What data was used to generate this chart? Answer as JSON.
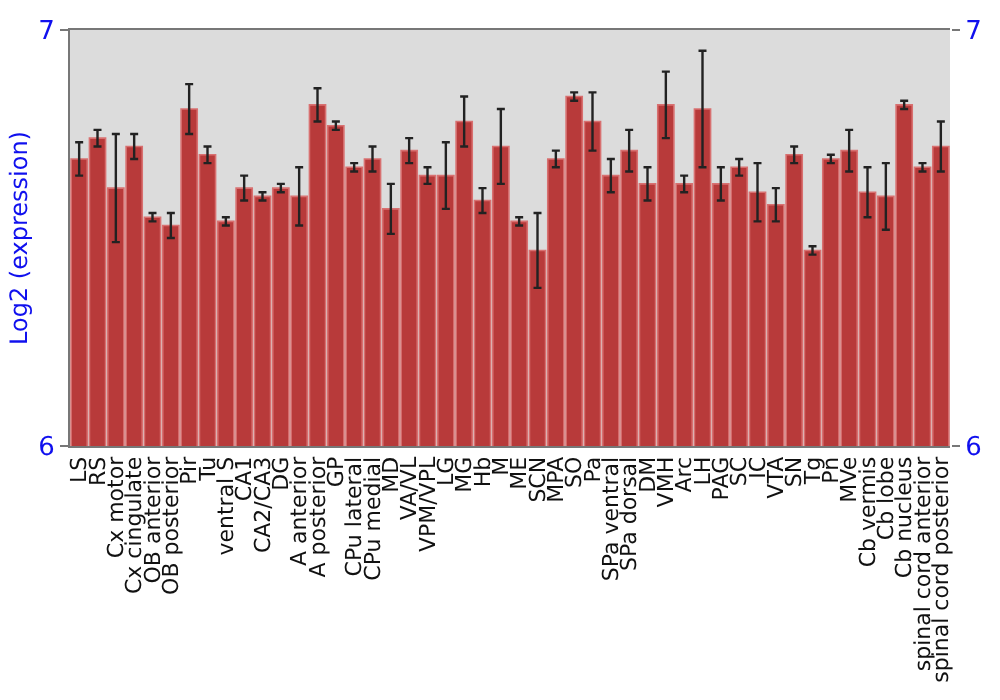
{
  "chart_data": {
    "type": "bar",
    "ylabel": "Log2 (expression)",
    "categories": [
      "LS",
      "RS",
      "Cx motor",
      "Cx cingulate",
      "OB anterior",
      "OB posterior",
      "Pir",
      "Tu",
      "ventral S",
      "CA1",
      "CA2/CA3",
      "DG",
      "A anterior",
      "A posterior",
      "GP",
      "CPu lateral",
      "CPu medial",
      "MD",
      "VA/VL",
      "VPM/VPL",
      "LG",
      "MG",
      "Hb",
      "M",
      "ME",
      "SCN",
      "MPA",
      "SO",
      "Pa",
      "SPa ventral",
      "SPa dorsal",
      "DM",
      "VMH",
      "Arc",
      "LH",
      "PAG",
      "SC",
      "IC",
      "VTA",
      "SN",
      "Tg",
      "Pn",
      "MVe",
      "Cb vermis",
      "Cb lobe",
      "Cb nucleus",
      "spinal cord anterior",
      "spinal cord posterior"
    ],
    "values": [
      6.69,
      6.74,
      6.62,
      6.72,
      6.55,
      6.53,
      6.81,
      6.7,
      6.54,
      6.62,
      6.6,
      6.62,
      6.6,
      6.82,
      6.77,
      6.67,
      6.69,
      6.57,
      6.71,
      6.65,
      6.65,
      6.78,
      6.59,
      6.72,
      6.54,
      6.47,
      6.69,
      6.84,
      6.78,
      6.65,
      6.71,
      6.63,
      6.82,
      6.63,
      6.81,
      6.63,
      6.67,
      6.61,
      6.58,
      6.7,
      6.47,
      6.69,
      6.71,
      6.61,
      6.6,
      6.82,
      6.67,
      6.72
    ],
    "errors": [
      0.04,
      0.02,
      0.13,
      0.03,
      0.01,
      0.03,
      0.06,
      0.02,
      0.01,
      0.03,
      0.01,
      0.01,
      0.07,
      0.04,
      0.01,
      0.01,
      0.03,
      0.06,
      0.03,
      0.02,
      0.08,
      0.06,
      0.03,
      0.09,
      0.01,
      0.09,
      0.02,
      0.01,
      0.07,
      0.04,
      0.05,
      0.04,
      0.08,
      0.02,
      0.14,
      0.04,
      0.02,
      0.07,
      0.04,
      0.02,
      0.01,
      0.01,
      0.05,
      0.06,
      0.08,
      0.01,
      0.01,
      0.06
    ],
    "color": "#b83a3a",
    "ylim": [
      6,
      7
    ],
    "yticks": [
      6,
      7
    ],
    "y2lim": [
      6,
      7
    ],
    "y2ticks": [
      6,
      7
    ]
  }
}
